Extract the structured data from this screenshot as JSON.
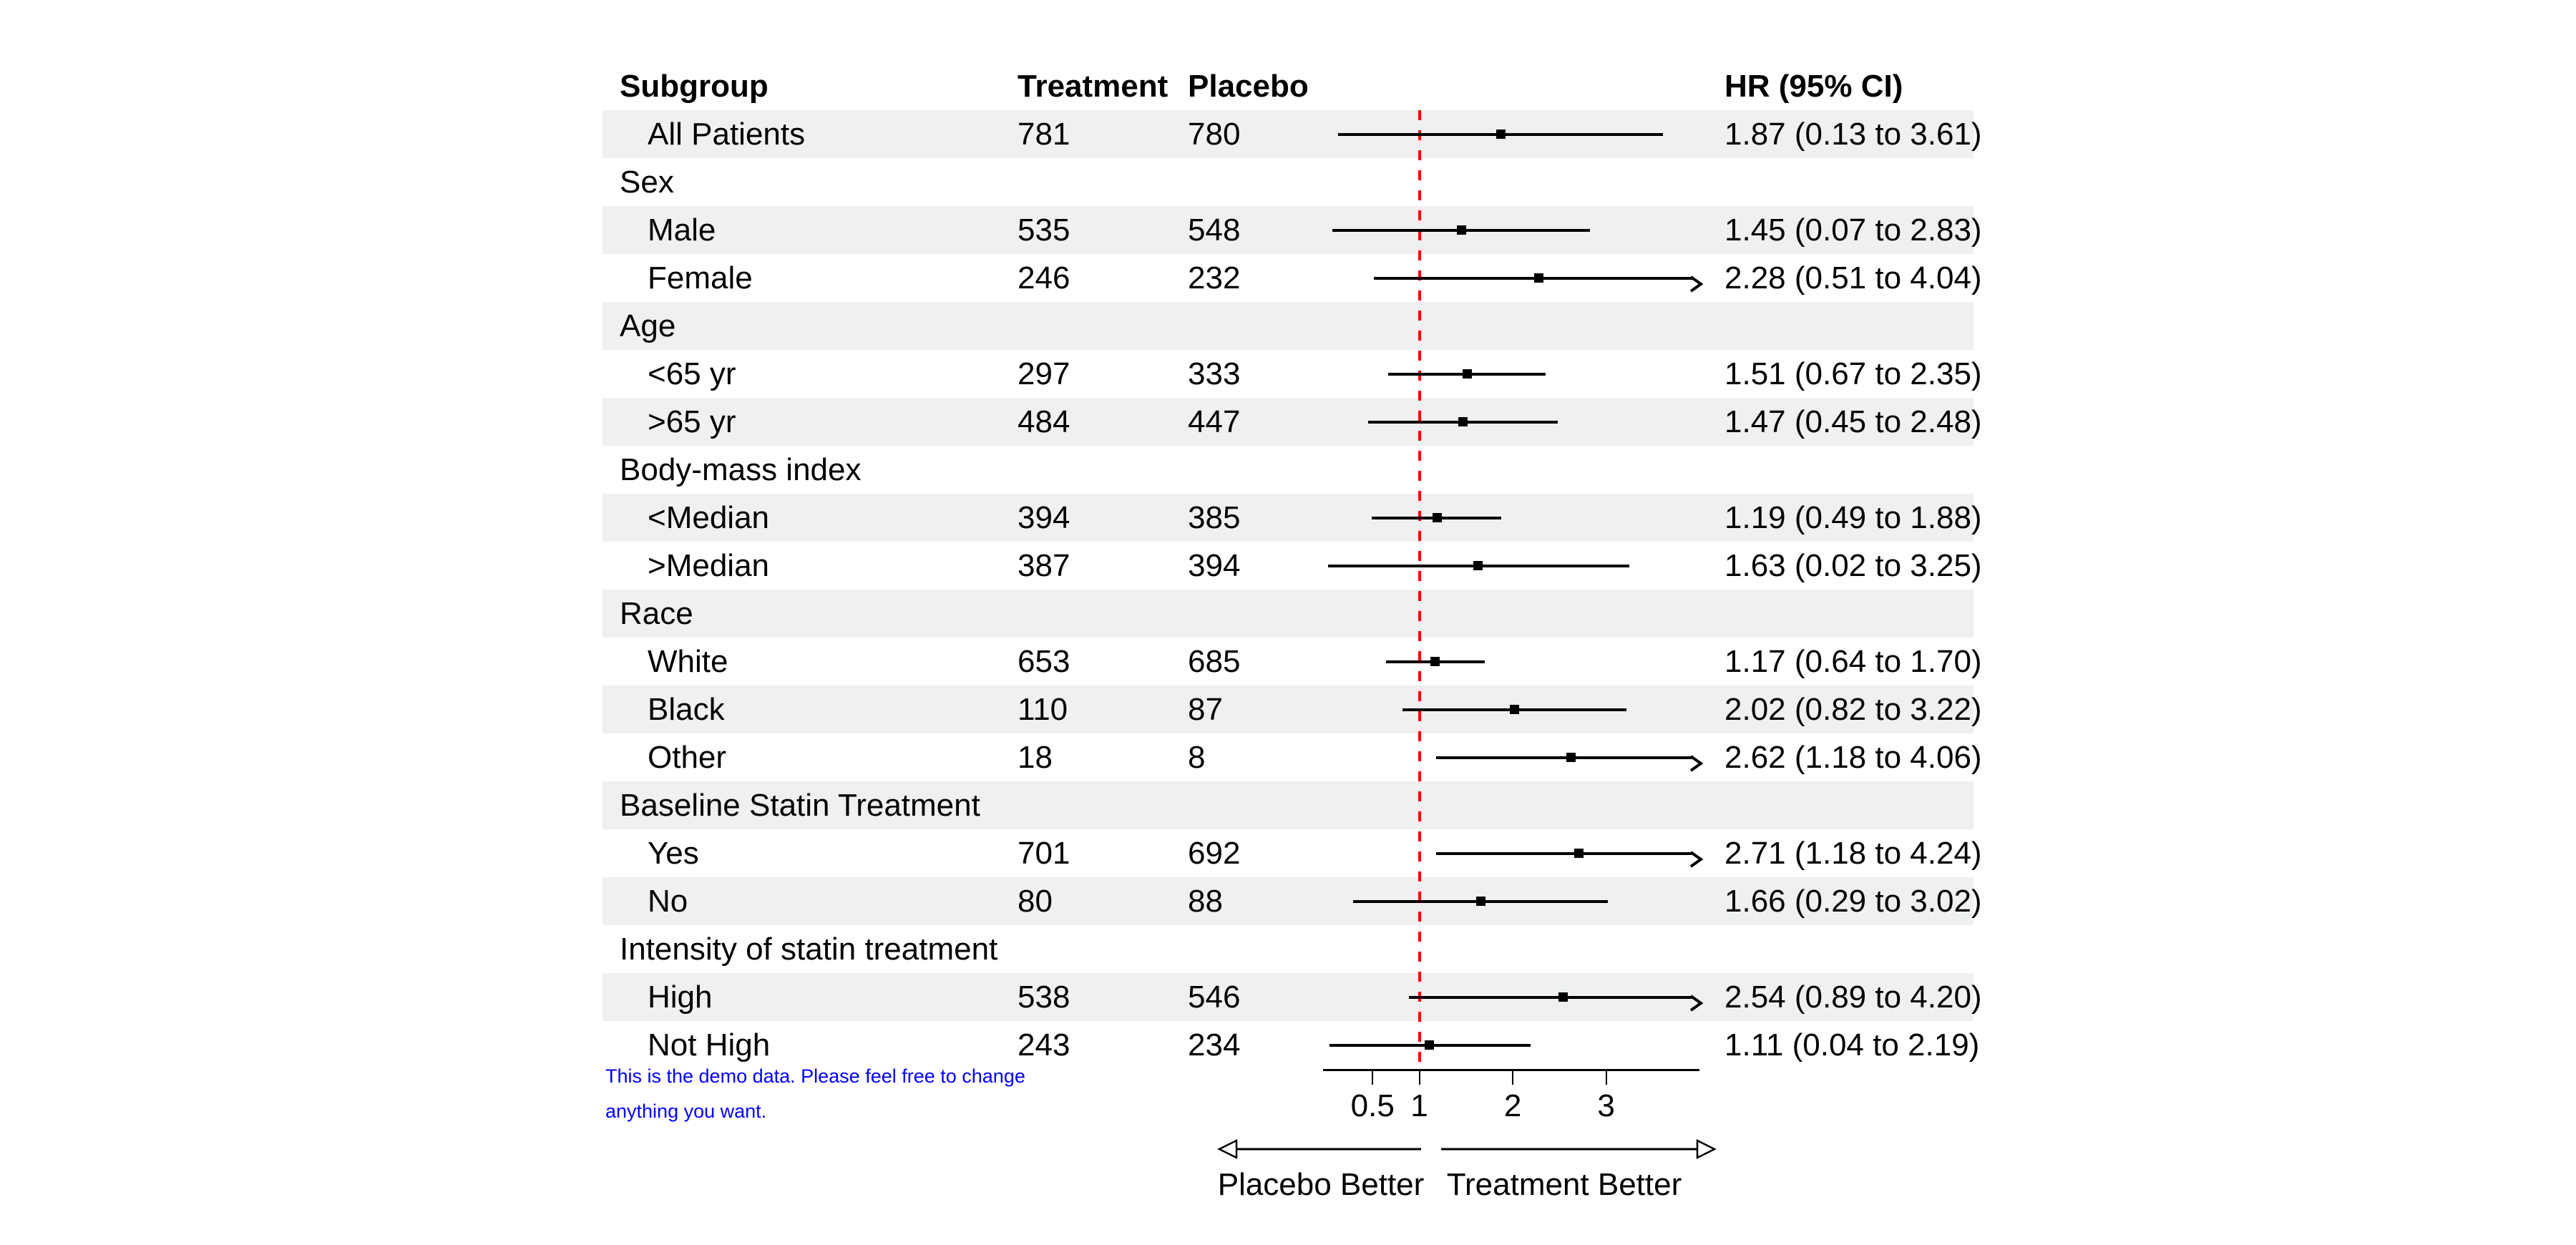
{
  "meta": {
    "background_color": "#ffffff",
    "stripe_color": "#eef1f0",
    "reference_line_color": "#ff0000",
    "note_color": "#0000ff",
    "text_color": "#000000"
  },
  "header": {
    "subgroup": "Subgroup",
    "treatment": "Treatment",
    "placebo": "Placebo",
    "hr": "HR (95% CI)"
  },
  "chart_data": {
    "type": "forest",
    "axis": {
      "scale": "linear",
      "min": 0,
      "max": 4.06,
      "ticks": [
        0.5,
        1,
        2,
        3
      ],
      "reference_line": 1,
      "clip_value": 4.0
    },
    "direction_labels": {
      "left": "Placebo Better",
      "right": "Treatment Better"
    },
    "rows": [
      {
        "kind": "row",
        "label": "All Patients",
        "treatment": "781",
        "placebo": "780",
        "hr": 1.87,
        "lo": 0.13,
        "hi": 3.61,
        "hr_text": "1.87 (0.13 to 3.61)",
        "arrow": false,
        "shaded": true
      },
      {
        "kind": "section",
        "label": "Sex",
        "shaded": false
      },
      {
        "kind": "row",
        "label": "Male",
        "treatment": "535",
        "placebo": "548",
        "hr": 1.45,
        "lo": 0.07,
        "hi": 2.83,
        "hr_text": "1.45 (0.07 to 2.83)",
        "arrow": false,
        "shaded": true
      },
      {
        "kind": "row",
        "label": "Female",
        "treatment": "246",
        "placebo": "232",
        "hr": 2.28,
        "lo": 0.51,
        "hi": 4.04,
        "hr_text": "2.28 (0.51 to 4.04)",
        "arrow": true,
        "shaded": false
      },
      {
        "kind": "section",
        "label": "Age",
        "shaded": true
      },
      {
        "kind": "row",
        "label": "<65 yr",
        "treatment": "297",
        "placebo": "333",
        "hr": 1.51,
        "lo": 0.67,
        "hi": 2.35,
        "hr_text": "1.51 (0.67 to 2.35)",
        "arrow": false,
        "shaded": false
      },
      {
        "kind": "row",
        "label": ">65 yr",
        "treatment": "484",
        "placebo": "447",
        "hr": 1.47,
        "lo": 0.45,
        "hi": 2.48,
        "hr_text": "1.47 (0.45 to 2.48)",
        "arrow": false,
        "shaded": true
      },
      {
        "kind": "section",
        "label": "Body-mass index",
        "shaded": false
      },
      {
        "kind": "row",
        "label": "<Median",
        "treatment": "394",
        "placebo": "385",
        "hr": 1.19,
        "lo": 0.49,
        "hi": 1.88,
        "hr_text": "1.19 (0.49 to 1.88)",
        "arrow": false,
        "shaded": true
      },
      {
        "kind": "row",
        "label": ">Median",
        "treatment": "387",
        "placebo": "394",
        "hr": 1.63,
        "lo": 0.02,
        "hi": 3.25,
        "hr_text": "1.63 (0.02 to 3.25)",
        "arrow": false,
        "shaded": false
      },
      {
        "kind": "section",
        "label": "Race",
        "shaded": true
      },
      {
        "kind": "row",
        "label": "White",
        "treatment": "653",
        "placebo": "685",
        "hr": 1.17,
        "lo": 0.64,
        "hi": 1.7,
        "hr_text": "1.17 (0.64 to 1.70)",
        "arrow": false,
        "shaded": false
      },
      {
        "kind": "row",
        "label": "Black",
        "treatment": "110",
        "placebo": "87",
        "hr": 2.02,
        "lo": 0.82,
        "hi": 3.22,
        "hr_text": "2.02 (0.82 to 3.22)",
        "arrow": false,
        "shaded": true
      },
      {
        "kind": "row",
        "label": "Other",
        "treatment": "18",
        "placebo": "8",
        "hr": 2.62,
        "lo": 1.18,
        "hi": 4.06,
        "hr_text": "2.62 (1.18 to 4.06)",
        "arrow": true,
        "shaded": false
      },
      {
        "kind": "section",
        "label": "Baseline Statin Treatment",
        "shaded": true
      },
      {
        "kind": "row",
        "label": "Yes",
        "treatment": "701",
        "placebo": "692",
        "hr": 2.71,
        "lo": 1.18,
        "hi": 4.24,
        "hr_text": "2.71 (1.18 to 4.24)",
        "arrow": true,
        "shaded": false
      },
      {
        "kind": "row",
        "label": "No",
        "treatment": "80",
        "placebo": "88",
        "hr": 1.66,
        "lo": 0.29,
        "hi": 3.02,
        "hr_text": "1.66 (0.29 to 3.02)",
        "arrow": false,
        "shaded": true
      },
      {
        "kind": "section",
        "label": "Intensity of statin treatment",
        "shaded": false
      },
      {
        "kind": "row",
        "label": "High",
        "treatment": "538",
        "placebo": "546",
        "hr": 2.54,
        "lo": 0.89,
        "hi": 4.2,
        "hr_text": "2.54 (0.89 to 4.20)",
        "arrow": true,
        "shaded": true
      },
      {
        "kind": "row",
        "label": "Not High",
        "treatment": "243",
        "placebo": "234",
        "hr": 1.11,
        "lo": 0.04,
        "hi": 2.19,
        "hr_text": "1.11 (0.04 to 2.19)",
        "arrow": false,
        "shaded": false
      }
    ]
  },
  "note": {
    "line1": "This is the demo data. Please feel free to change",
    "line2": "anything you want."
  }
}
